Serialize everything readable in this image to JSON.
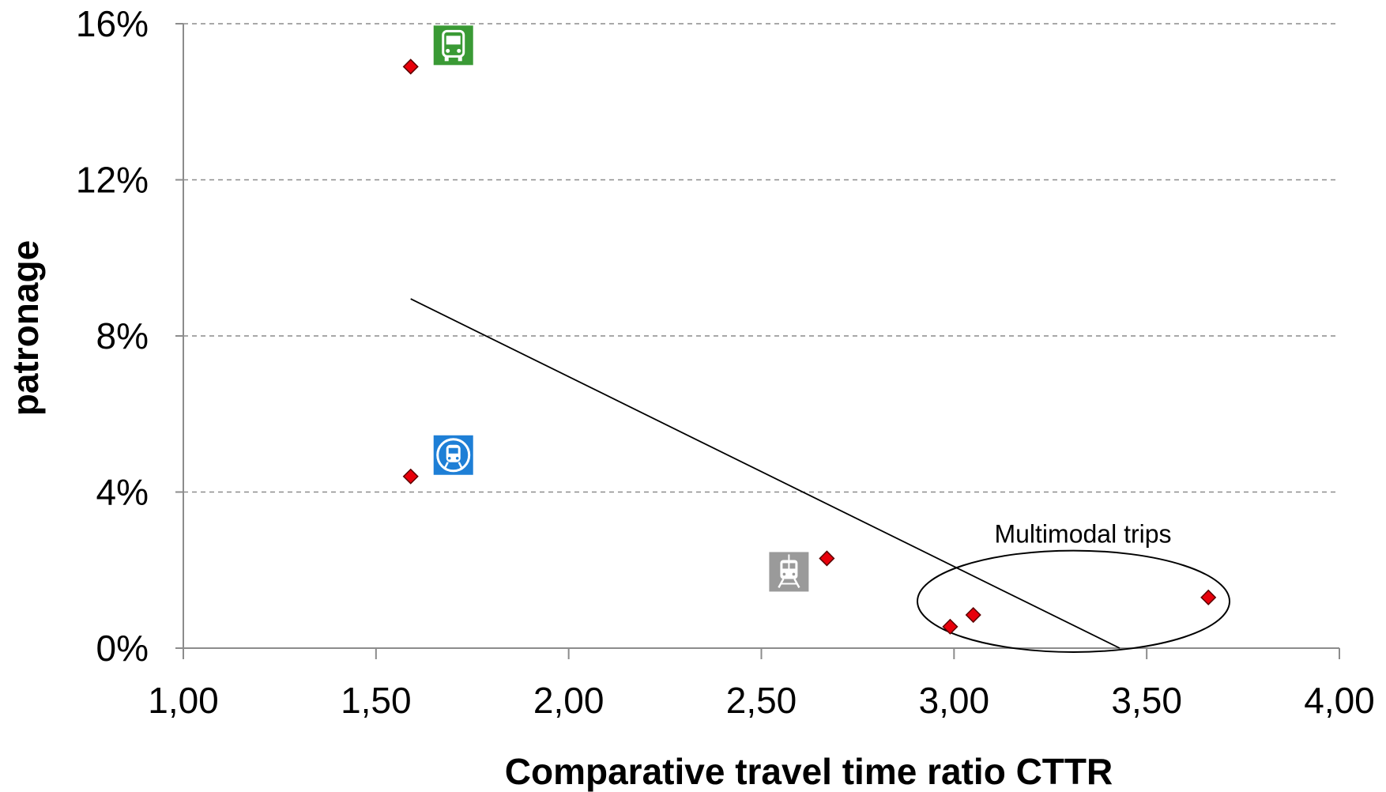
{
  "chart_data": {
    "type": "scatter",
    "title": "",
    "xlabel": "Comparative travel time ratio CTTR",
    "ylabel": "patronage",
    "xlim": [
      1.0,
      4.0
    ],
    "ylim": [
      0,
      16
    ],
    "x_ticks": [
      1.0,
      1.5,
      2.0,
      2.5,
      3.0,
      3.5,
      4.0
    ],
    "x_tick_labels": [
      "1,00",
      "1,50",
      "2,00",
      "2,50",
      "3,00",
      "3,50",
      "4,00"
    ],
    "y_ticks": [
      0,
      4,
      8,
      12,
      16
    ],
    "y_tick_labels": [
      "0%",
      "4%",
      "8%",
      "12%",
      "16%"
    ],
    "grid": "horizontal dashed",
    "legend": "none",
    "marker_color": "#e8000b",
    "points": [
      {
        "x": 1.59,
        "y": 14.9,
        "icon": "bus-icon",
        "icon_color": "#3a9a35"
      },
      {
        "x": 1.59,
        "y": 4.4,
        "icon": "metro-icon",
        "icon_color": "#1e7fd6"
      },
      {
        "x": 2.67,
        "y": 2.3,
        "icon": "train-icon",
        "icon_color": "#9a9a9a"
      },
      {
        "x": 2.99,
        "y": 0.55
      },
      {
        "x": 3.05,
        "y": 0.85
      },
      {
        "x": 3.66,
        "y": 1.3
      }
    ],
    "trendline": {
      "type": "linear",
      "x_start": 1.59,
      "y_start": 8.95,
      "x_end": 3.43,
      "y_end": 0.0
    },
    "annotations": [
      {
        "text": "Multimodal trips",
        "shape": "ellipse",
        "center_x": 3.31,
        "center_y": 1.2,
        "radius_x": 0.405,
        "radius_y": 1.3
      }
    ]
  }
}
